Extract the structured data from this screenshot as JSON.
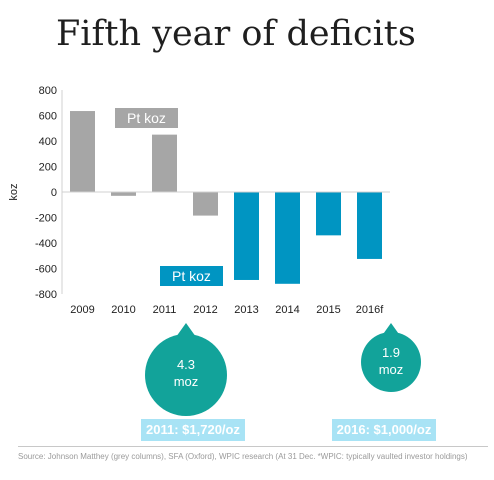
{
  "title": "Fifth year of deficits",
  "chart_data": {
    "type": "bar",
    "categories": [
      "2009",
      "2010",
      "2011",
      "2012",
      "2013",
      "2014",
      "2015",
      "2016f"
    ],
    "values": [
      635,
      -30,
      450,
      -185,
      -690,
      -720,
      -340,
      -525
    ],
    "bar_colors": [
      "#a6a6a6",
      "#a6a6a6",
      "#a6a6a6",
      "#a6a6a6",
      "#0095c2",
      "#0095c2",
      "#0095c2",
      "#0095c2"
    ],
    "ylabel": "koz",
    "ylim": [
      -800,
      800
    ],
    "yticks": [
      800,
      600,
      400,
      200,
      0,
      -200,
      -400,
      -600,
      -800
    ],
    "grid": false,
    "legend": [
      {
        "label": "Pt koz",
        "color": "#a6a6a6"
      },
      {
        "label": "Pt koz",
        "color": "#0095c2"
      }
    ]
  },
  "annotations": {
    "bubble_left": {
      "line1": "4.3",
      "line2": "moz"
    },
    "bubble_right": {
      "line1": "1.9",
      "line2": "moz"
    },
    "tag_left": "2011: $1,720/oz",
    "tag_right": "2016: $1,000/oz"
  },
  "colors": {
    "grey": "#a6a6a6",
    "blue": "#0095c2",
    "teal": "#12a39a",
    "tag": "#a8e3f5"
  },
  "source": "Source: Johnson Matthey (grey columns), SFA (Oxford), WPIC research (At 31 Dec. *WPIC: typically vaulted investor holdings)"
}
